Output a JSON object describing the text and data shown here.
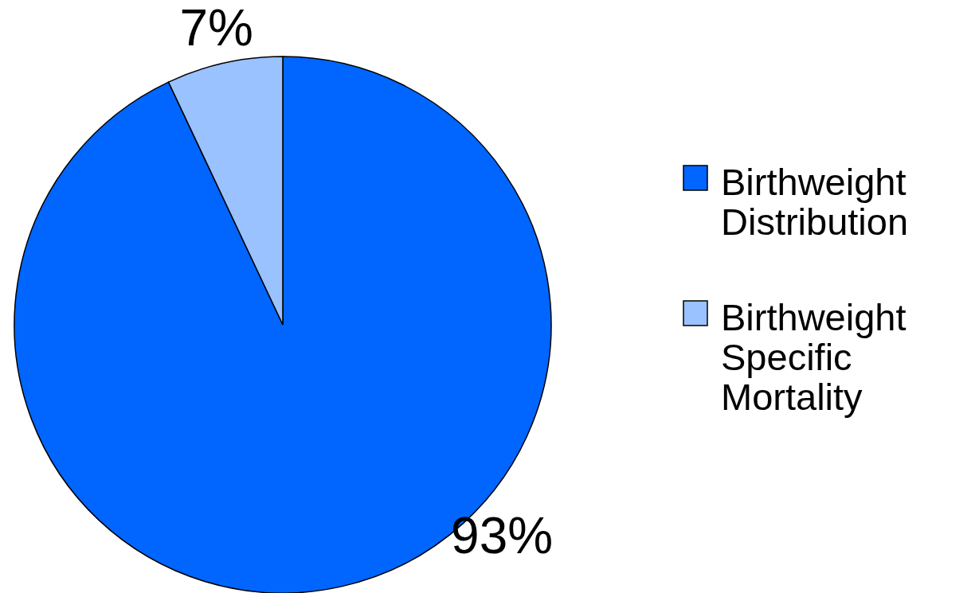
{
  "chart_data": {
    "type": "pie",
    "categories": [
      "Birthweight Distribution",
      "Birthweight Specific Mortality"
    ],
    "values": [
      93,
      7
    ],
    "colors": [
      "#0066ff",
      "#99c2ff"
    ],
    "value_labels": [
      "93%",
      "7%"
    ],
    "legend": "right"
  }
}
